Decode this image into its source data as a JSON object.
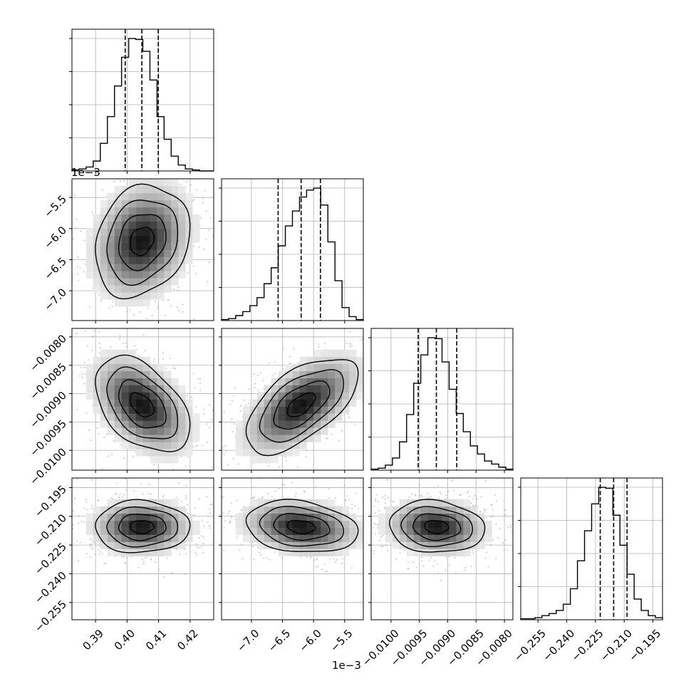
{
  "chart_data": {
    "type": "corner",
    "title": "",
    "parameters": [
      {
        "index": 0,
        "range": [
          0.3825,
          0.4275
        ],
        "ticks": [
          0.39,
          0.4,
          0.41,
          0.42
        ],
        "tick_labels": [
          "0.39",
          "0.40",
          "0.41",
          "0.42"
        ],
        "quantiles": [
          0.3994,
          0.4047,
          0.4099
        ],
        "offset_label": "",
        "hist": [
          1,
          2,
          4,
          10,
          28,
          55,
          86,
          115,
          134,
          133,
          121,
          92,
          55,
          32,
          15,
          6,
          2,
          1,
          0,
          0
        ]
      },
      {
        "index": 1,
        "range": [
          -7.48,
          -5.2
        ],
        "ticks": [
          -7.0,
          -6.5,
          -6.0,
          -5.5
        ],
        "tick_labels": [
          "−7.0",
          "−6.5",
          "−6.0",
          "−5.5"
        ],
        "quantiles": [
          -6.57,
          -6.2,
          -5.89
        ],
        "offset_label": "1e−3",
        "hist": [
          1,
          2,
          5,
          9,
          15,
          23,
          37,
          53,
          75,
          95,
          110,
          124,
          131,
          133,
          116,
          79,
          40,
          13,
          4,
          1
        ]
      },
      {
        "index": 2,
        "range": [
          -0.01035,
          -0.00785
        ],
        "ticks": [
          -0.01,
          -0.0095,
          -0.009,
          -0.0085,
          -0.008
        ],
        "tick_labels": [
          "−0.0100",
          "−0.0095",
          "−0.0090",
          "−0.0085",
          "−0.0080"
        ],
        "quantiles": [
          -0.00952,
          -0.0092,
          -0.00884
        ],
        "offset_label": "",
        "hist": [
          1,
          2,
          5,
          12,
          28,
          55,
          86,
          114,
          131,
          130,
          107,
          80,
          56,
          38,
          24,
          16,
          9,
          6,
          3,
          1
        ]
      },
      {
        "index": 3,
        "range": [
          -0.264,
          -0.19
        ],
        "ticks": [
          -0.255,
          -0.24,
          -0.225,
          -0.21,
          -0.195
        ],
        "tick_labels": [
          "−0.255",
          "−0.240",
          "−0.225",
          "−0.210",
          "−0.195"
        ],
        "quantiles": [
          -0.2225,
          -0.2155,
          -0.2085
        ],
        "offset_label": "",
        "hist": [
          1,
          1,
          2,
          4,
          6,
          9,
          15,
          30,
          57,
          86,
          112,
          128,
          127,
          101,
          72,
          44,
          20,
          9,
          4,
          2
        ]
      }
    ],
    "pairs": [
      {
        "x": 0,
        "y": 1,
        "mean": [
          0.4047,
          -6.2
        ],
        "std": [
          0.0075,
          0.45
        ],
        "corr": 0.2
      },
      {
        "x": 0,
        "y": 2,
        "mean": [
          0.4047,
          -0.0092
        ],
        "std": [
          0.0075,
          0.00042
        ],
        "corr": -0.45
      },
      {
        "x": 1,
        "y": 2,
        "mean": [
          -6.2,
          -0.0092
        ],
        "std": [
          0.45,
          0.00042
        ],
        "corr": 0.6
      },
      {
        "x": 0,
        "y": 3,
        "mean": [
          0.4047,
          -0.2155
        ],
        "std": [
          0.0075,
          0.0068
        ],
        "corr": 0.0
      },
      {
        "x": 1,
        "y": 3,
        "mean": [
          -6.2,
          -0.2155
        ],
        "std": [
          0.45,
          0.0068
        ],
        "corr": -0.2
      },
      {
        "x": 2,
        "y": 3,
        "mean": [
          -0.0092,
          -0.2155
        ],
        "std": [
          0.00042,
          0.0068
        ],
        "corr": -0.1
      }
    ],
    "contour_sigmas": [
      0.5,
      1.0,
      1.5,
      2.0
    ],
    "grid": true,
    "colors": {
      "hist": "#000000",
      "contour": "#000000",
      "points": "#aaaaaa",
      "frame": "#000000",
      "grid": "#b0b0b0"
    }
  }
}
